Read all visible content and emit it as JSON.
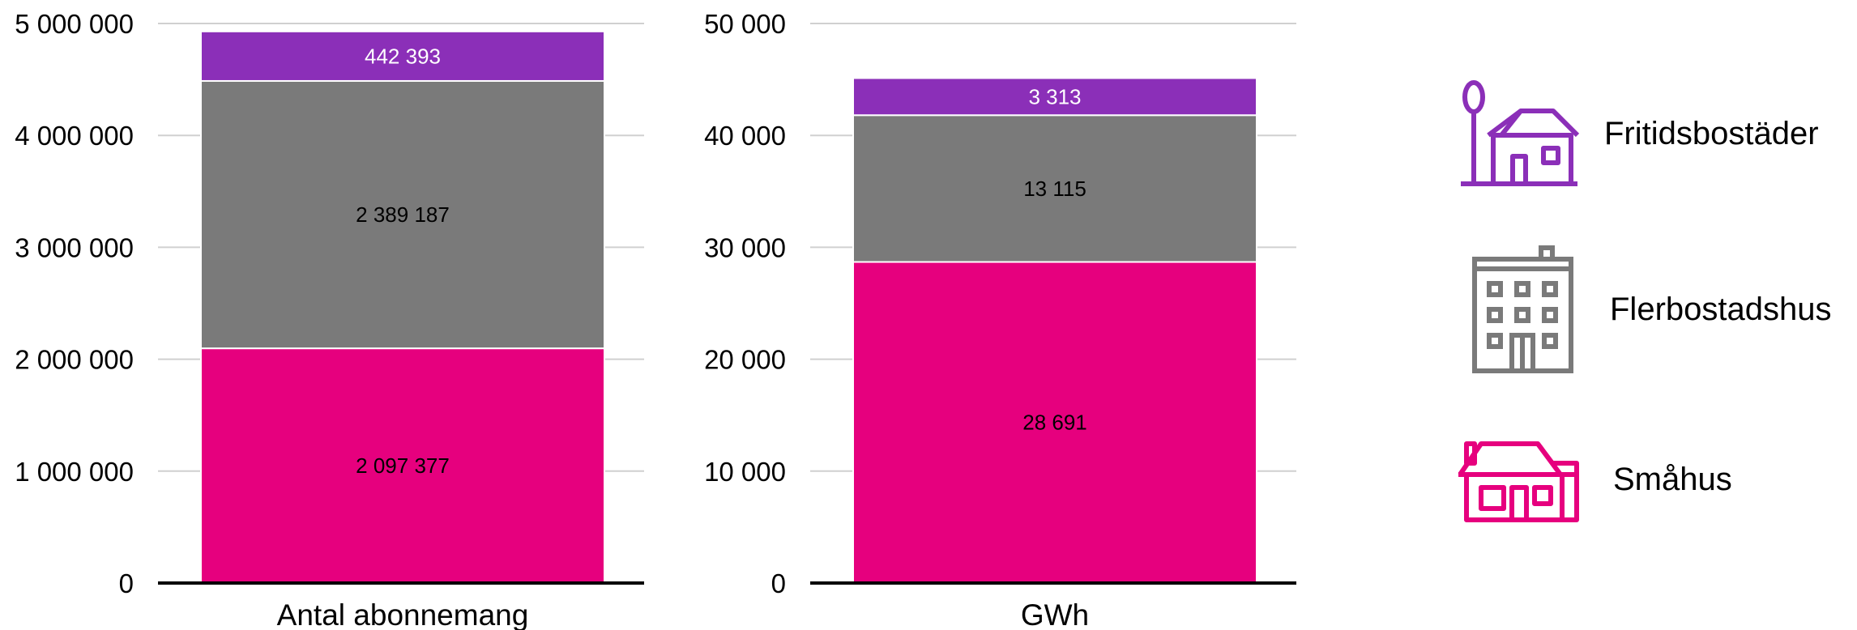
{
  "chart_data": [
    {
      "type": "bar",
      "stacked": true,
      "xlabel": "Antal abonnemang",
      "ylim": [
        0,
        5000000
      ],
      "yticks": [
        "0",
        "1 000 000",
        "2 000 000",
        "3 000 000",
        "4 000 000",
        "5 000 000"
      ],
      "grid": true,
      "series": [
        {
          "name": "Småhus",
          "value": 2097377,
          "label": "2 097 377",
          "color": "#E6007E",
          "label_color": "#000000"
        },
        {
          "name": "Flerbostadshus",
          "value": 2389187,
          "label": "2 389 187",
          "color": "#7A7A7A",
          "label_color": "#000000"
        },
        {
          "name": "Fritidsbostäder",
          "value": 442393,
          "label": "442 393",
          "color": "#8B2FB8",
          "label_color": "#FFFFFF"
        }
      ]
    },
    {
      "type": "bar",
      "stacked": true,
      "xlabel": "GWh",
      "ylim": [
        0,
        50000
      ],
      "yticks": [
        "0",
        "10 000",
        "20 000",
        "30 000",
        "40 000",
        "50 000"
      ],
      "grid": true,
      "series": [
        {
          "name": "Småhus",
          "value": 28691,
          "label": "28 691",
          "color": "#E6007E",
          "label_color": "#000000"
        },
        {
          "name": "Flerbostadshus",
          "value": 13115,
          "label": "13 115",
          "color": "#7A7A7A",
          "label_color": "#000000"
        },
        {
          "name": "Fritidsbostäder",
          "value": 3313,
          "label": "3 313",
          "color": "#8B2FB8",
          "label_color": "#FFFFFF"
        }
      ]
    }
  ],
  "legend": {
    "placement": "right",
    "items": [
      {
        "label": "Fritidsbostäder",
        "icon": "vacation-house-icon",
        "color": "#8B2FB8"
      },
      {
        "label": "Flerbostadshus",
        "icon": "apartment-building-icon",
        "color": "#7A7A7A"
      },
      {
        "label": "Småhus",
        "icon": "house-icon",
        "color": "#E6007E"
      }
    ]
  }
}
